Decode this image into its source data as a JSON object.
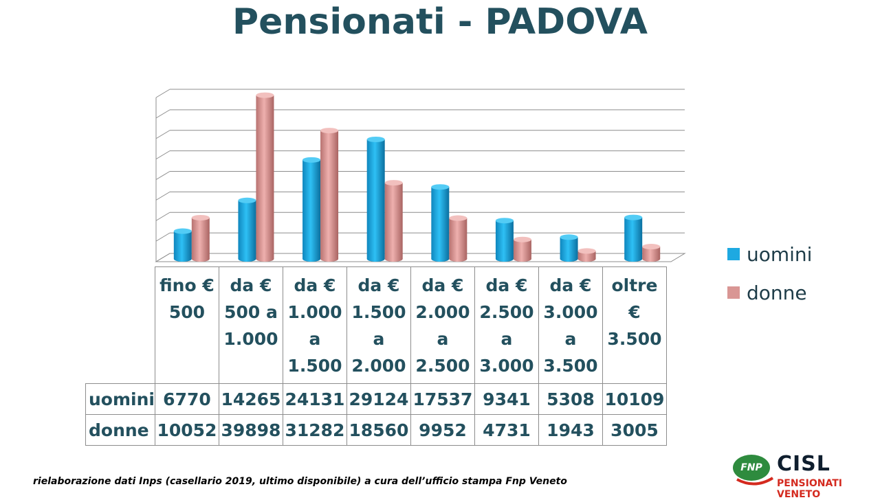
{
  "title": "Pensionati - PADOVA",
  "footnote": "rielaborazione dati Inps (casellario 2019, ultimo disponibile) a cura dell’ufficio stampa Fnp  Veneto",
  "logo": {
    "badge": "FNP",
    "name": "CISL",
    "subtitle": "PENSIONATI VENETO"
  },
  "colors": {
    "uomini": "#1ea9e1",
    "donne": "#d99694",
    "text": "#23505e"
  },
  "chart_data": {
    "type": "bar",
    "title": "Pensionati - PADOVA",
    "categories": [
      [
        "fino €",
        "500"
      ],
      [
        "da €",
        "500 a",
        "1.000"
      ],
      [
        "da €",
        "1.000",
        "a",
        "1.500"
      ],
      [
        "da €",
        "1.500",
        "a",
        "2.000"
      ],
      [
        "da €",
        "2.000",
        "a",
        "2.500"
      ],
      [
        "da €",
        "2.500",
        "a",
        "3.000"
      ],
      [
        "da €",
        "3.000",
        "a",
        "3.500"
      ],
      [
        "oltre",
        "€",
        "3.500"
      ]
    ],
    "series": [
      {
        "name": "uomini",
        "color": "#1ea9e1",
        "values": [
          6770,
          14265,
          24131,
          29124,
          17537,
          9341,
          5308,
          10109
        ]
      },
      {
        "name": "donne",
        "color": "#d99694",
        "values": [
          10052,
          39898,
          31282,
          18560,
          9952,
          4731,
          1943,
          3005
        ]
      }
    ],
    "value_labels": {
      "uomini": [
        "6770",
        "14265",
        "24131",
        "29124",
        "17537",
        "9341",
        "5308",
        "10109"
      ],
      "donne": [
        "10052",
        "39898",
        "31282",
        "18560",
        "9952",
        "4731",
        "1943",
        "3005"
      ]
    },
    "ylim": [
      0,
      40000
    ],
    "grid": true,
    "legend": "right",
    "style": "3d-cylinder"
  }
}
